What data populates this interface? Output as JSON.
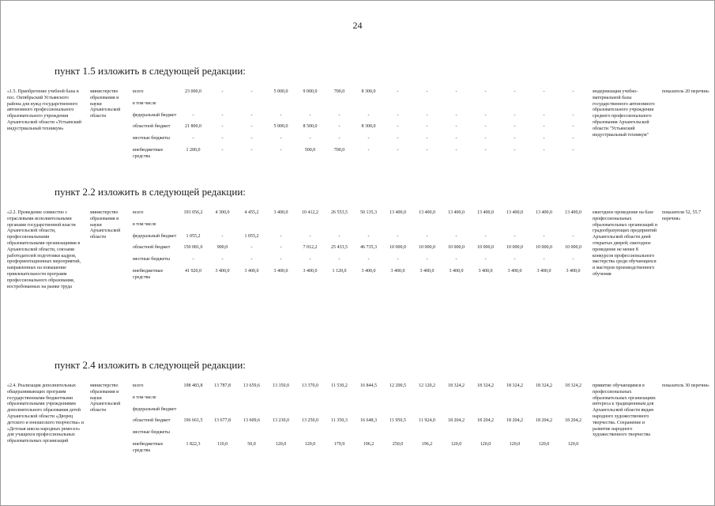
{
  "page": {
    "number": "24"
  },
  "sections": [
    {
      "heading": "пункт 1.5 изложить в следующей редакции:",
      "item": {
        "number_text": "«1.5. Приобретение учебной базы в пос. Октябрьский Устьянского района для нужд государственного автономного профессионального образовательного учреждения Архангельской области «Устьянский индустриальный техникум»",
        "executor": "министерство образования и науки Архангельской области",
        "rows": [
          {
            "label": "всего",
            "values": [
              "23 000,0",
              "-",
              "-",
              "5 000,0",
              "9 000,0",
              "700,0",
              "8 300,0",
              "-",
              "-",
              "-",
              "-",
              "-",
              "-",
              "-"
            ]
          },
          {
            "label": "в том числе",
            "values": []
          },
          {
            "label": "федеральный бюджет",
            "values": [
              "-",
              "-",
              "-",
              "-",
              "-",
              "-",
              "-",
              "-",
              "-",
              "-",
              "-",
              "-",
              "-",
              "-"
            ]
          },
          {
            "label": "областной бюджет",
            "values": [
              "21 800,0",
              "-",
              "-",
              "5 000,0",
              "8 500,0",
              "-",
              "8 300,0",
              "-",
              "-",
              "-",
              "-",
              "-",
              "-",
              "-"
            ]
          },
          {
            "label": "местные бюджеты",
            "values": [
              "-",
              "-",
              "-",
              "-",
              "-",
              "-",
              "-",
              "-",
              "-",
              "-",
              "-",
              "-",
              "-",
              "-"
            ]
          },
          {
            "label": "внебюджетные средства",
            "values": [
              "1 200,0",
              "-",
              "-",
              "-",
              "500,0",
              "700,0",
              "-",
              "-",
              "-",
              "-",
              "-",
              "-",
              "-",
              "-"
            ]
          }
        ],
        "result": "модернизация учебно-материальной базы государственного автономного образовательного учреждения среднего профессионального образования Архангельской области \"Устьянский индустриальный техникум\"",
        "indicator": "показатель 20 перечня»"
      }
    },
    {
      "heading": "пункт 2.2 изложить в следующей редакции:",
      "item": {
        "number_text": "«2.2. Проведение совместно с отраслевыми исполнительными органами государственной власти Архангельской области, профессиональными образовательными организациями в Архангельской области, союзами работодателей подготовки кадров, профориентационных мероприятий, направленных на повышение привлекательности программ профессионального образования, востребованных на рынке труда",
        "executor": "министерство образования и науки Архангельской области",
        "rows": [
          {
            "label": "всего",
            "values": [
              "193 056,2",
              "4 300,0",
              "4 455,2",
              "3 400,0",
              "10 412,2",
              "26 553,5",
              "50 135,3",
              "13 400,0",
              "13 400,0",
              "13 400,0",
              "13 400,0",
              "13 400,0",
              "13 400,0",
              "13 400,0"
            ]
          },
          {
            "label": "в том числе",
            "values": []
          },
          {
            "label": "федеральный бюджет",
            "values": [
              "1 055,2",
              "-",
              "1 055,2",
              "-",
              "-",
              "-",
              "-",
              "-",
              "-",
              "-",
              "-",
              "-",
              "-",
              "-"
            ]
          },
          {
            "label": "областной бюджет",
            "values": [
              "150 081,0",
              "900,0",
              "-",
              "-",
              "7 012,2",
              "25 433,5",
              "46 735,3",
              "10 000,0",
              "10 000,0",
              "10 000,0",
              "10 000,0",
              "10 000,0",
              "10 000,0",
              "10 000,0"
            ]
          },
          {
            "label": "местные бюджеты",
            "values": [
              "-",
              "-",
              "-",
              "-",
              "-",
              "-",
              "-",
              "-",
              "-",
              "-",
              "-",
              "-",
              "-",
              "-"
            ]
          },
          {
            "label": "внебюджетные средства",
            "values": [
              "41 920,0",
              "3 400,0",
              "3 400,0",
              "3 400,0",
              "3 400,0",
              "1 120,0",
              "3 400,0",
              "3 400,0",
              "3 400,0",
              "3 400,0",
              "3 400,0",
              "3 400,0",
              "3 400,0",
              "3 400,0"
            ]
          }
        ],
        "result": "ежегодное проведение на базе профессиональных образовательных организаций и градообразующих предприятий Архангельской области дней открытых дверей; ежегодное проведение не менее 8 конкурсов профессионального мастерства среди обучающихся и мастеров производственного обучения",
        "indicator": "показатели 52, 55.7 перечня»"
      }
    },
    {
      "heading": "пункт 2.4 изложить в следующей редакции:",
      "item": {
        "number_text": "«2.4. Реализация дополнительных общеразвивающих программ государственными бюджетными образовательными учреждениями дополнительного образования детей Архангельской области «Дворец детского и юношеского творчества» и «Детская школа народных ремесел» для учащихся профессиональных образовательных организаций",
        "executor": "министерство образования и науки Архангельской области",
        "rows": [
          {
            "label": "всего",
            "values": [
              "198 483,8",
              "13 787,8",
              "13 659,6",
              "13 350,0",
              "13 370,0",
              "11 530,2",
              "16 844,5",
              "12 200,5",
              "12 120,2",
              "18 324,2",
              "18 324,2",
              "18 324,2",
              "18 324,2",
              "18 324,2"
            ]
          },
          {
            "label": "в том числе",
            "values": []
          },
          {
            "label": "федеральный бюджет",
            "values": []
          },
          {
            "label": "областной бюджет",
            "values": [
              "196 661,5",
              "13 677,8",
              "13 609,6",
              "13 230,0",
              "13 250,0",
              "11 350,3",
              "16 648,3",
              "11 950,5",
              "11 924,0",
              "18 204,2",
              "18 204,2",
              "18 204,2",
              "18 204,2",
              "18 204,2"
            ]
          },
          {
            "label": "местные бюджеты",
            "values": []
          },
          {
            "label": "внебюджетные средства",
            "values": [
              "1 822,3",
              "110,0",
              "50,0",
              "120,0",
              "120,0",
              "179,9",
              "196,2",
              "250,0",
              "196,2",
              "120,0",
              "120,0",
              "120,0",
              "120,0",
              "120,0"
            ]
          }
        ],
        "result": "привитие обучающимся в профессиональных образовательных организациях интереса к традиционным для Архангельской области видам народного художественного творчества. Сохранение и развитие народного художественного творчества",
        "indicator": "показатель 30 перечня»"
      }
    }
  ]
}
